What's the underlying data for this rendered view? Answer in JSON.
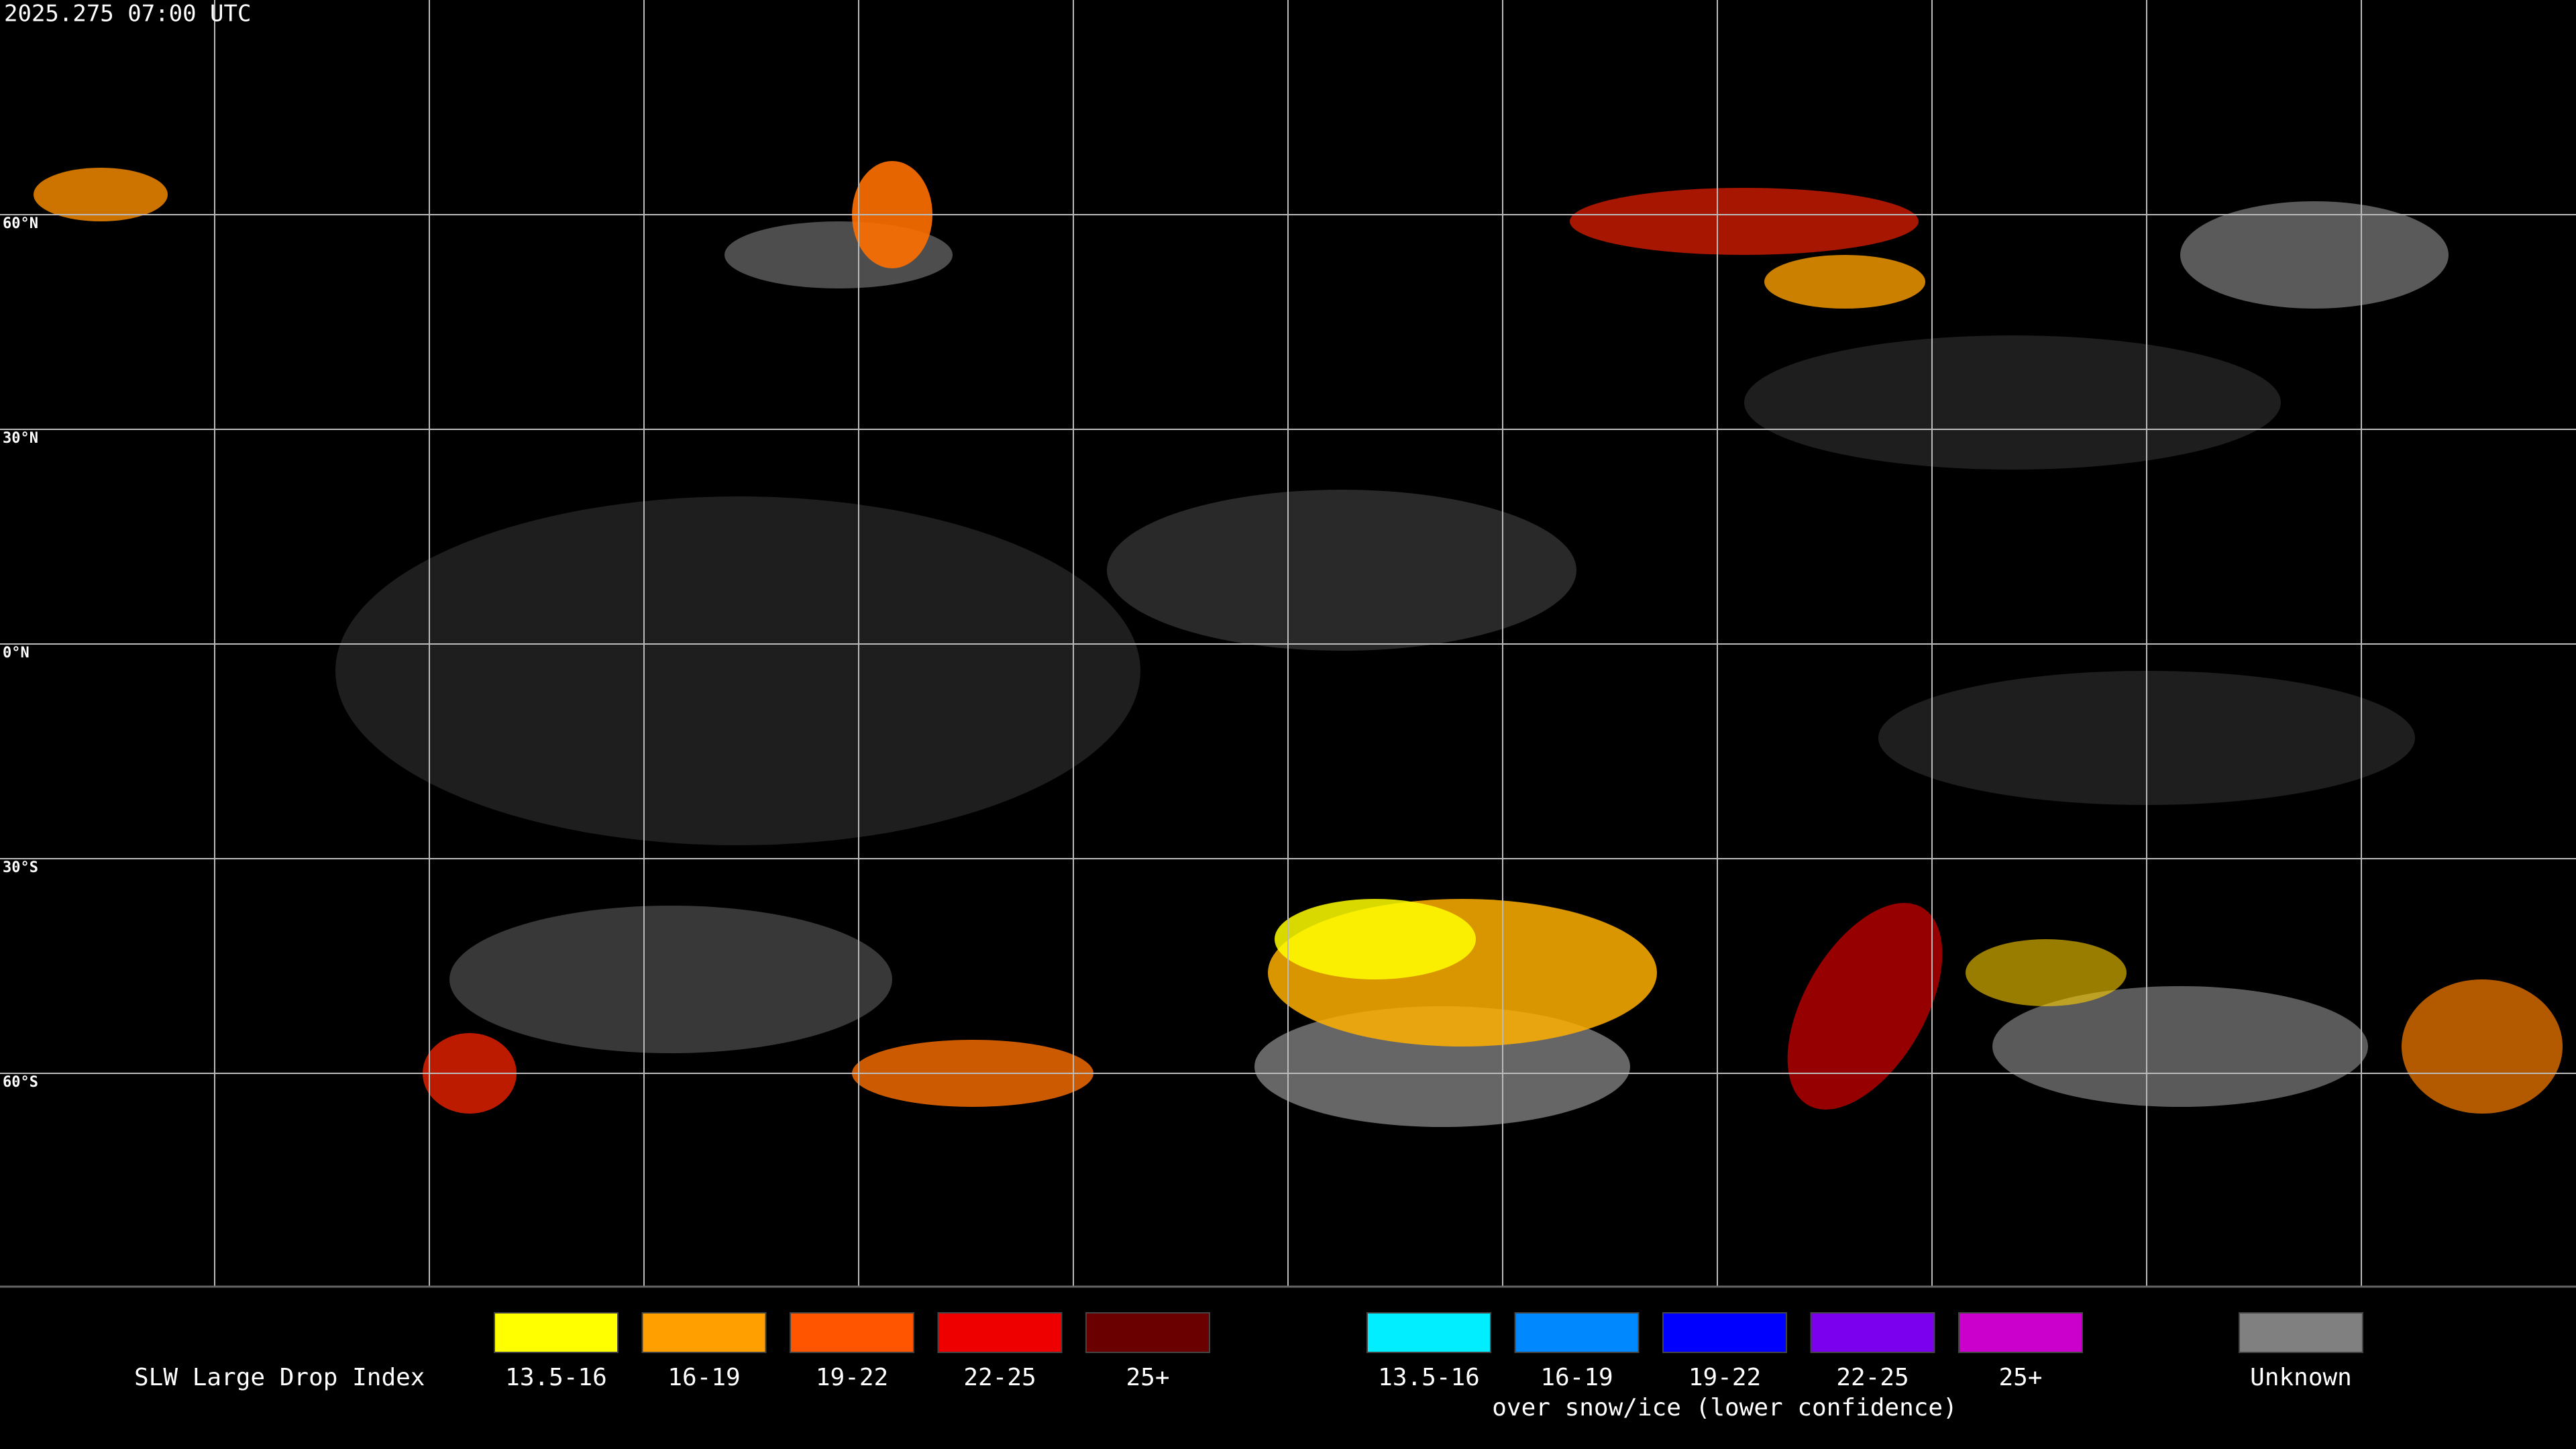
{
  "header": {
    "timestamp": "2025.275 07:00 UTC"
  },
  "map": {
    "latitude_labels": [
      "60°N",
      "30°N",
      "0°N",
      "30°S",
      "60°S"
    ]
  },
  "legend": {
    "title": "SLW Large Drop Index",
    "groups": [
      {
        "items": [
          {
            "label": "13.5-16",
            "color": "#ffff00"
          },
          {
            "label": "16-19",
            "color": "#ffa000"
          },
          {
            "label": "19-22",
            "color": "#ff5500"
          },
          {
            "label": "22-25",
            "color": "#ee0000"
          },
          {
            "label": "25+",
            "color": "#6a0000"
          }
        ]
      },
      {
        "items": [
          {
            "label": "13.5-16",
            "color": "#00eeff"
          },
          {
            "label": "16-19",
            "color": "#0088ff"
          },
          {
            "label": "19-22",
            "color": "#0000ff"
          },
          {
            "label": "22-25",
            "color": "#7a00ee"
          },
          {
            "label": "25+",
            "color": "#cc00cc"
          }
        ],
        "note": "over snow/ice (lower confidence)"
      }
    ],
    "unknown": {
      "label": "Unknown",
      "color": "#808080"
    }
  }
}
